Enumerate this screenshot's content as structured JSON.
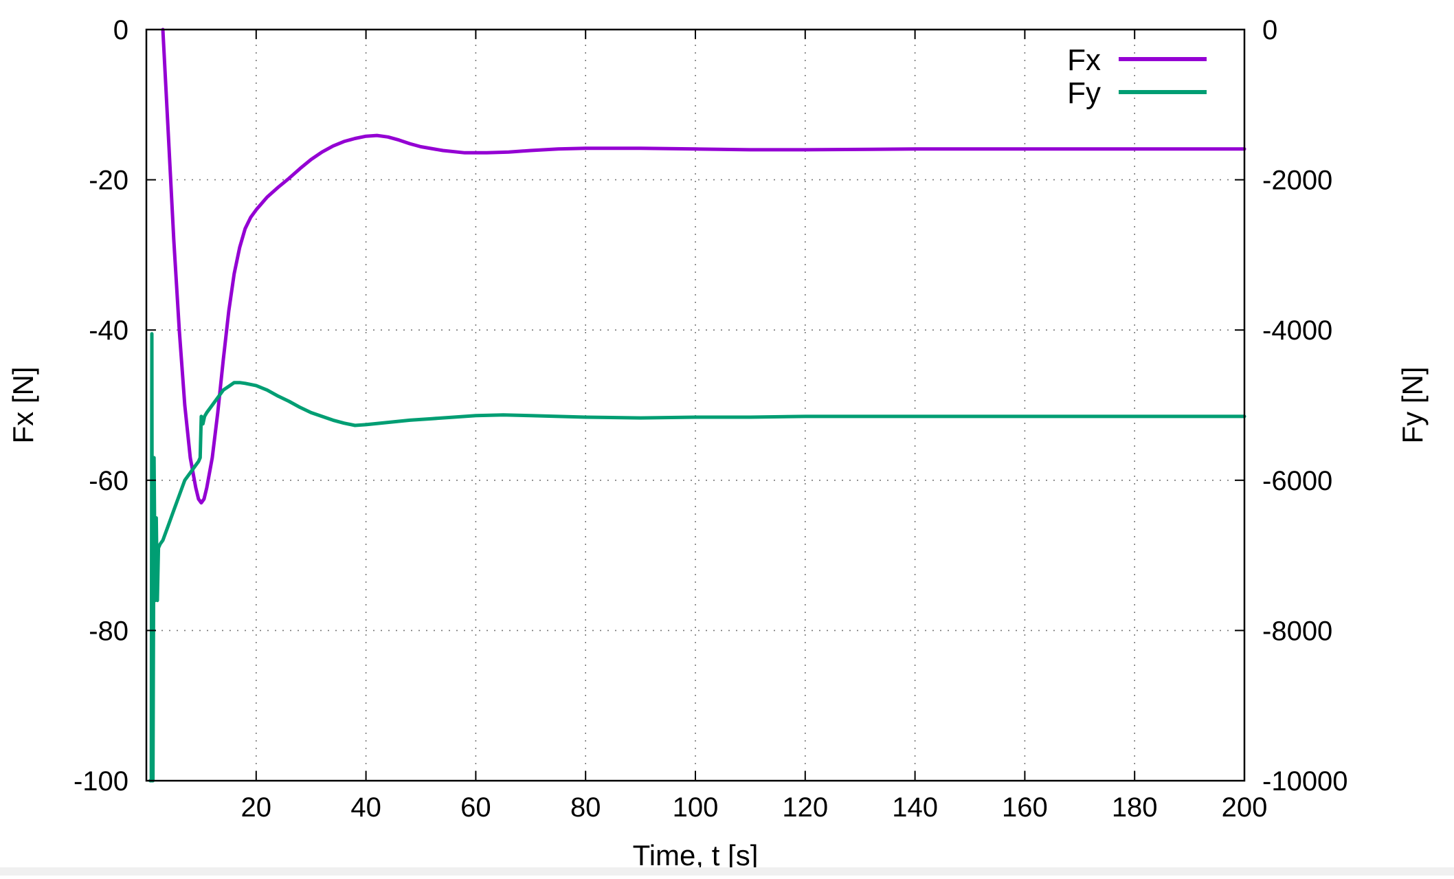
{
  "chart_data": {
    "type": "line",
    "title": "",
    "xlabel": "Time, t [s]",
    "ylabel": "Fx [N]",
    "y2label": "Fy [N]",
    "xlim": [
      0,
      200
    ],
    "ylim": [
      -100,
      0
    ],
    "y2lim": [
      -10000,
      0
    ],
    "x_ticks": [
      20,
      40,
      60,
      80,
      100,
      120,
      140,
      160,
      180,
      200
    ],
    "y_ticks": [
      0,
      -20,
      -40,
      -60,
      -80,
      -100
    ],
    "y2_ticks": [
      0,
      -2000,
      -4000,
      -6000,
      -8000,
      -10000
    ],
    "grid": true,
    "legend_position": "top-right",
    "series": [
      {
        "name": "Fx",
        "axis": "y",
        "color": "#9400d3",
        "x": [
          3,
          4,
          5,
          6,
          7,
          8,
          9,
          9.5,
          10,
          10.5,
          11,
          12,
          13,
          14,
          15,
          16,
          17,
          18,
          19,
          20,
          22,
          24,
          26,
          28,
          30,
          32,
          34,
          36,
          38,
          40,
          42,
          44,
          46,
          48,
          50,
          54,
          58,
          62,
          66,
          70,
          75,
          80,
          90,
          100,
          110,
          120,
          140,
          160,
          180,
          200
        ],
        "values": [
          0,
          -14,
          -28,
          -40,
          -50,
          -57,
          -61,
          -62.5,
          -63,
          -62.5,
          -61,
          -57,
          -51,
          -44,
          -37.5,
          -32.5,
          -29,
          -26.5,
          -25,
          -24,
          -22.3,
          -21,
          -19.8,
          -18.5,
          -17.3,
          -16.3,
          -15.5,
          -14.9,
          -14.5,
          -14.2,
          -14.1,
          -14.3,
          -14.7,
          -15.2,
          -15.6,
          -16.1,
          -16.4,
          -16.4,
          -16.3,
          -16.1,
          -15.9,
          -15.8,
          -15.8,
          -15.9,
          -16,
          -16,
          -15.9,
          -15.9,
          -15.9,
          -15.9
        ]
      },
      {
        "name": "Fy",
        "axis": "y2",
        "color": "#009e73",
        "x": [
          0.7,
          0.9,
          1.0,
          1.1,
          1.2,
          1.4,
          1.6,
          1.8,
          2.0,
          2.2,
          2.5,
          3,
          4,
          5,
          6,
          7,
          8,
          9,
          9.5,
          9.8,
          10.0,
          10.3,
          10.6,
          11,
          12,
          13,
          14,
          15,
          16,
          17,
          18,
          20,
          22,
          24,
          26,
          28,
          30,
          32,
          34,
          36,
          38,
          40,
          44,
          48,
          52,
          56,
          60,
          65,
          70,
          80,
          90,
          100,
          110,
          120,
          140,
          160,
          180,
          200
        ],
        "values": [
          -10000,
          -10000,
          -4050,
          -10000,
          -10000,
          -5700,
          -7600,
          -6500,
          -7600,
          -6900,
          -6850,
          -6800,
          -6600,
          -6400,
          -6200,
          -6000,
          -5900,
          -5800,
          -5750,
          -5700,
          -5150,
          -5250,
          -5150,
          -5100,
          -5000,
          -4900,
          -4800,
          -4750,
          -4700,
          -4700,
          -4710,
          -4740,
          -4800,
          -4880,
          -4950,
          -5030,
          -5100,
          -5150,
          -5200,
          -5240,
          -5270,
          -5260,
          -5230,
          -5200,
          -5180,
          -5160,
          -5140,
          -5130,
          -5140,
          -5160,
          -5170,
          -5160,
          -5160,
          -5150,
          -5150,
          -5150,
          -5150,
          -5150
        ]
      }
    ]
  }
}
